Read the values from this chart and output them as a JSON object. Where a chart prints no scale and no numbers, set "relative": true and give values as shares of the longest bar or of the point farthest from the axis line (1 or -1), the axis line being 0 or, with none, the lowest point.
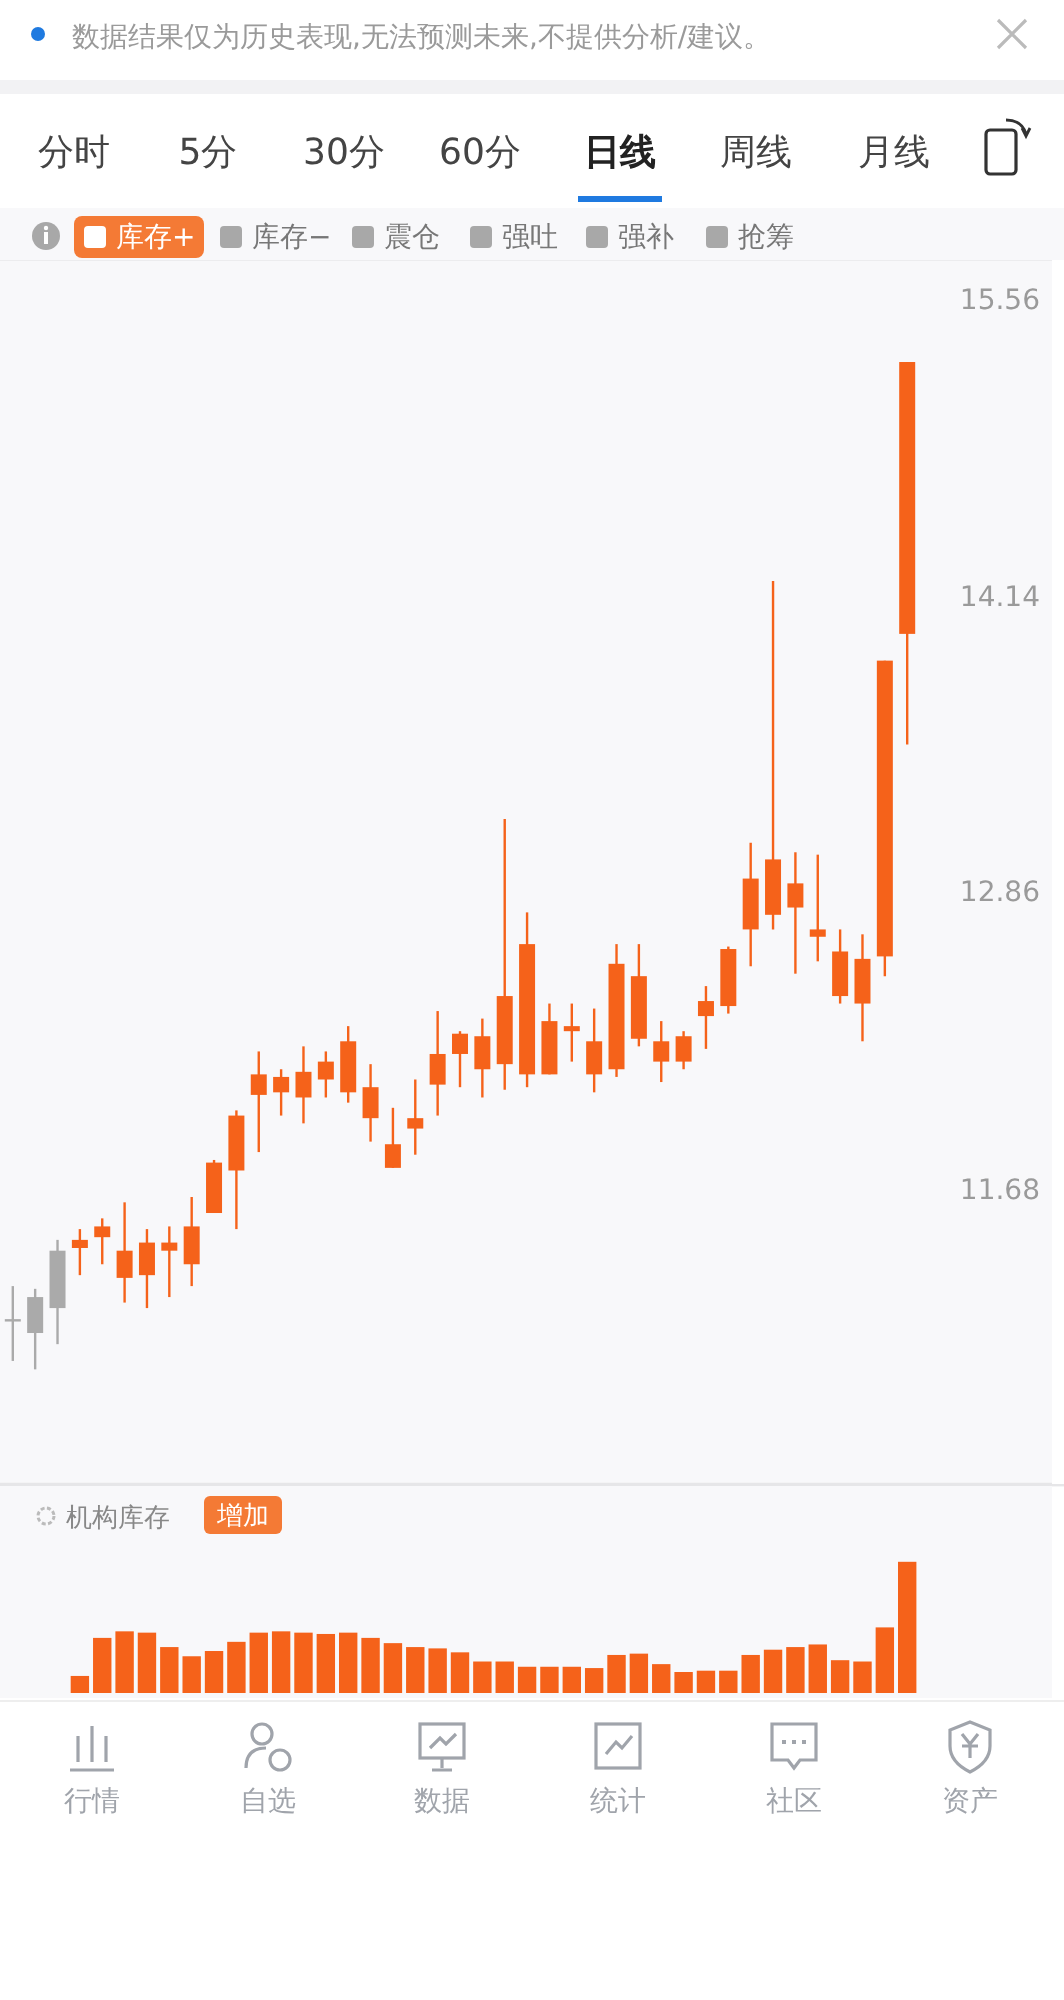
{
  "chart_data": [
    {
      "type": "candlestick",
      "categories": [
        null,
        null,
        null,
        null,
        null,
        null,
        null,
        null,
        null,
        null,
        null,
        null,
        null,
        null,
        null,
        null,
        null,
        null,
        null,
        null,
        null,
        null,
        null,
        null,
        null,
        null,
        null,
        null,
        null,
        null,
        null,
        null,
        null,
        null,
        null,
        null,
        null,
        null,
        null,
        null,
        null
      ],
      "ohlc": [
        [
          11.21,
          11.33,
          11.06,
          11.21
        ],
        [
          11.16,
          11.32,
          11.03,
          11.29
        ],
        [
          11.25,
          11.5,
          11.12,
          11.46
        ],
        [
          11.47,
          11.54,
          11.37,
          11.5
        ],
        [
          11.51,
          11.58,
          11.41,
          11.55
        ],
        [
          11.36,
          11.64,
          11.27,
          11.46
        ],
        [
          11.37,
          11.54,
          11.25,
          11.49
        ],
        [
          11.46,
          11.55,
          11.29,
          11.49
        ],
        [
          11.41,
          11.66,
          11.33,
          11.55
        ],
        [
          11.6,
          11.8,
          11.6,
          11.79
        ],
        [
          11.76,
          11.99,
          11.54,
          11.97
        ],
        [
          12.05,
          12.22,
          11.83,
          12.13
        ],
        [
          12.06,
          12.15,
          11.97,
          12.12
        ],
        [
          12.04,
          12.24,
          11.94,
          12.14
        ],
        [
          12.11,
          12.22,
          12.04,
          12.18
        ],
        [
          12.06,
          12.32,
          12.02,
          12.26
        ],
        [
          11.96,
          12.17,
          11.87,
          12.08
        ],
        [
          11.77,
          12.0,
          11.77,
          11.86
        ],
        [
          11.92,
          12.11,
          11.82,
          11.96
        ],
        [
          12.09,
          12.38,
          11.97,
          12.21
        ],
        [
          12.21,
          12.3,
          12.08,
          12.29
        ],
        [
          12.15,
          12.35,
          12.04,
          12.28
        ],
        [
          12.17,
          13.17,
          12.07,
          12.44
        ],
        [
          12.13,
          12.78,
          12.08,
          12.65
        ],
        [
          12.13,
          12.41,
          12.13,
          12.34
        ],
        [
          12.3,
          12.41,
          12.18,
          12.32
        ],
        [
          12.13,
          12.39,
          12.06,
          12.26
        ],
        [
          12.15,
          12.65,
          12.12,
          12.57
        ],
        [
          12.27,
          12.65,
          12.24,
          12.52
        ],
        [
          12.18,
          12.34,
          12.1,
          12.26
        ],
        [
          12.18,
          12.3,
          12.15,
          12.28
        ],
        [
          12.36,
          12.48,
          12.23,
          12.42
        ],
        [
          12.4,
          12.64,
          12.37,
          12.63
        ],
        [
          12.71,
          13.07,
          12.56,
          12.92
        ],
        [
          12.77,
          14.22,
          12.71,
          13.0
        ],
        [
          12.8,
          13.03,
          12.53,
          12.9
        ],
        [
          12.68,
          13.02,
          12.58,
          12.71
        ],
        [
          12.44,
          12.71,
          12.41,
          12.62
        ],
        [
          12.41,
          12.69,
          12.26,
          12.59
        ],
        [
          12.6,
          13.86,
          12.52,
          13.86
        ],
        [
          13.98,
          15.26,
          13.49,
          15.26
        ]
      ],
      "colors": [
        "#aaaaaa",
        "#aaaaaa",
        "#aaaaaa",
        "#f5621a",
        "#f5621a",
        "#f5621a",
        "#f5621a",
        "#f5621a",
        "#f5621a",
        "#f5621a",
        "#f5621a",
        "#f5621a",
        "#f5621a",
        "#f5621a",
        "#f5621a",
        "#f5621a",
        "#f5621a",
        "#f5621a",
        "#f5621a",
        "#f5621a",
        "#f5621a",
        "#f5621a",
        "#f5621a",
        "#f5621a",
        "#f5621a",
        "#f5621a",
        "#f5621a",
        "#f5621a",
        "#f5621a",
        "#f5621a",
        "#f5621a",
        "#f5621a",
        "#f5621a",
        "#f5621a",
        "#f5621a",
        "#f5621a",
        "#f5621a",
        "#f5621a",
        "#f5621a",
        "#f5621a",
        "#f5621a"
      ],
      "log": true,
      "ylim": [
        10.63,
        15.77
      ],
      "yticks": [
        15.56,
        14.14,
        12.86,
        11.68
      ],
      "tick_labels": "y",
      "annotations": [
        "数据结果仅为历史表现,无法预测未来,不提供分析/建议。",
        "分时",
        "5分",
        "30分",
        "60分",
        "日线",
        "周线",
        "月线",
        "库存+",
        "库存−",
        "震仓",
        "强吐",
        "强补",
        "抢筹"
      ]
    },
    {
      "type": "bar",
      "title": "机构库存",
      "relative": true,
      "color": "#f5621a",
      "categories": [
        null,
        null,
        null,
        null,
        null,
        null,
        null,
        null,
        null,
        null,
        null,
        null,
        null,
        null,
        null,
        null,
        null,
        null,
        null,
        null,
        null,
        null,
        null,
        null,
        null,
        null,
        null,
        null,
        null,
        null,
        null,
        null,
        null,
        null,
        null,
        null,
        null,
        null,
        null,
        null,
        null
      ],
      "values": [
        null,
        null,
        null,
        0.13,
        0.42,
        0.47,
        0.46,
        0.35,
        0.28,
        0.32,
        0.39,
        0.46,
        0.47,
        0.46,
        0.45,
        0.46,
        0.42,
        0.38,
        0.35,
        0.34,
        0.31,
        0.24,
        0.24,
        0.2,
        0.2,
        0.2,
        0.19,
        0.29,
        0.3,
        0.22,
        0.16,
        0.17,
        0.17,
        0.29,
        0.33,
        0.35,
        0.37,
        0.25,
        0.24,
        0.5,
        1.0
      ],
      "annotations": [
        "增加",
        "行情",
        "自选",
        "数据",
        "统计",
        "社区",
        "资产"
      ]
    }
  ]
}
